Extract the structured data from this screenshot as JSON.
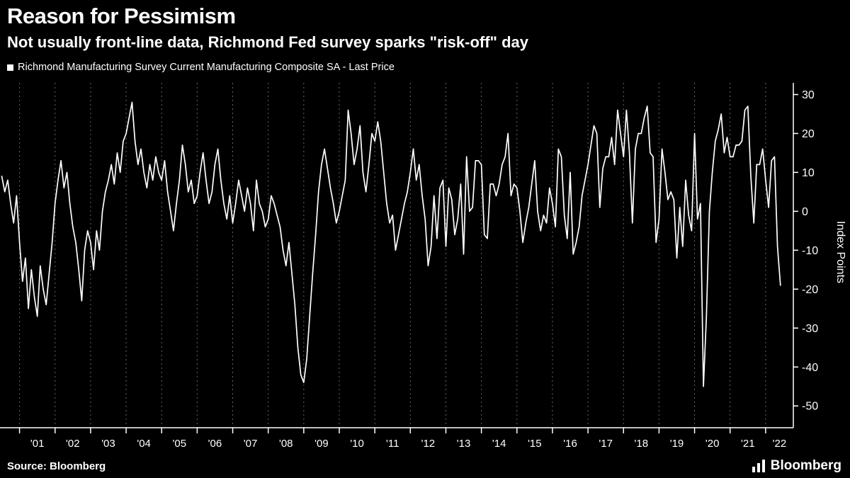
{
  "footer": {
    "source_label": "Source: Bloomberg",
    "brand": "Bloomberg"
  },
  "chart_data": {
    "type": "line",
    "title": "Reason for Pessimism",
    "subtitle": "Not usually front-line data, Richmond Fed survey sparks \"risk-off\" day",
    "legend_position": "top-left",
    "background": "#000000",
    "axis_color": "#ffffff",
    "grid_color": "#666666",
    "grid": "vertical-dashed-yearly",
    "ylabel": "Index Points",
    "y_ticks": [
      30,
      20,
      10,
      0,
      -10,
      -20,
      -30,
      -40,
      -50
    ],
    "ylim": [
      -55.6,
      33
    ],
    "x_domain_years": [
      2000.45,
      2022.78
    ],
    "x_tick_labels": [
      "'01",
      "'02",
      "'03",
      "'04",
      "'05",
      "'06",
      "'07",
      "'08",
      "'09",
      "'10",
      "'11",
      "'12",
      "'13",
      "'14",
      "'15",
      "'16",
      "'17",
      "'18",
      "'19",
      "'20",
      "'21",
      "'22"
    ],
    "series": [
      {
        "name": "Richmond Manufacturing Survey Current Manufacturing Composite SA - Last Price",
        "color": "#ffffff",
        "frequency": "monthly",
        "start": "2000-07",
        "end": "2022-06",
        "values": [
          9,
          5,
          8,
          2,
          -3,
          4,
          -8,
          -18,
          -12,
          -25,
          -15,
          -22,
          -27,
          -14,
          -20,
          -24,
          -16,
          -8,
          2,
          8,
          13,
          6,
          10,
          2,
          -4,
          -8,
          -15,
          -23,
          -10,
          -5,
          -8,
          -15,
          -5,
          -10,
          0,
          5,
          8,
          12,
          7,
          15,
          10,
          18,
          20,
          24,
          28,
          18,
          12,
          16,
          10,
          6,
          12,
          8,
          14,
          10,
          8,
          13,
          5,
          0,
          -5,
          2,
          8,
          17,
          12,
          5,
          8,
          2,
          4,
          10,
          15,
          8,
          2,
          5,
          12,
          16,
          8,
          2,
          -2,
          4,
          -3,
          2,
          8,
          4,
          0,
          6,
          2,
          -5,
          8,
          2,
          0,
          -4,
          -2,
          4,
          2,
          -1,
          -4,
          -10,
          -14,
          -8,
          -16,
          -24,
          -35,
          -42,
          -44,
          -38,
          -27,
          -16,
          -6,
          5,
          12,
          16,
          11,
          6,
          2,
          -3,
          0,
          4,
          8,
          26,
          20,
          12,
          16,
          22,
          10,
          5,
          12,
          20,
          18,
          23,
          18,
          10,
          2,
          -3,
          -1,
          -10,
          -6,
          -2,
          2,
          5,
          10,
          16,
          8,
          12,
          4,
          -2,
          -14,
          -9,
          4,
          -7,
          6,
          8,
          -9,
          6,
          3,
          -6,
          -2,
          7,
          -11,
          14,
          0,
          1,
          13,
          13,
          12,
          -6,
          -7,
          7,
          7,
          4,
          7,
          12,
          14,
          20,
          4,
          7,
          6,
          0,
          -8,
          -3,
          1,
          7,
          13,
          0,
          -5,
          -1,
          -3,
          6,
          2,
          -4,
          16,
          14,
          -1,
          -7,
          10,
          -11,
          -8,
          -4,
          4,
          8,
          12,
          17,
          22,
          20,
          1,
          11,
          14,
          14,
          19,
          12,
          26,
          20,
          14,
          26,
          15,
          -3,
          16,
          20,
          20,
          24,
          27,
          15,
          14,
          -8,
          -2,
          16,
          10,
          3,
          5,
          3,
          -12,
          1,
          -9,
          8,
          -1,
          -5,
          20,
          -2,
          2,
          -45,
          -27,
          0,
          10,
          18,
          21,
          25,
          15,
          19,
          14,
          14,
          17,
          17,
          18,
          26,
          27,
          9,
          -3,
          12,
          12,
          16,
          8,
          1,
          13,
          14,
          -9,
          -19
        ]
      }
    ]
  }
}
